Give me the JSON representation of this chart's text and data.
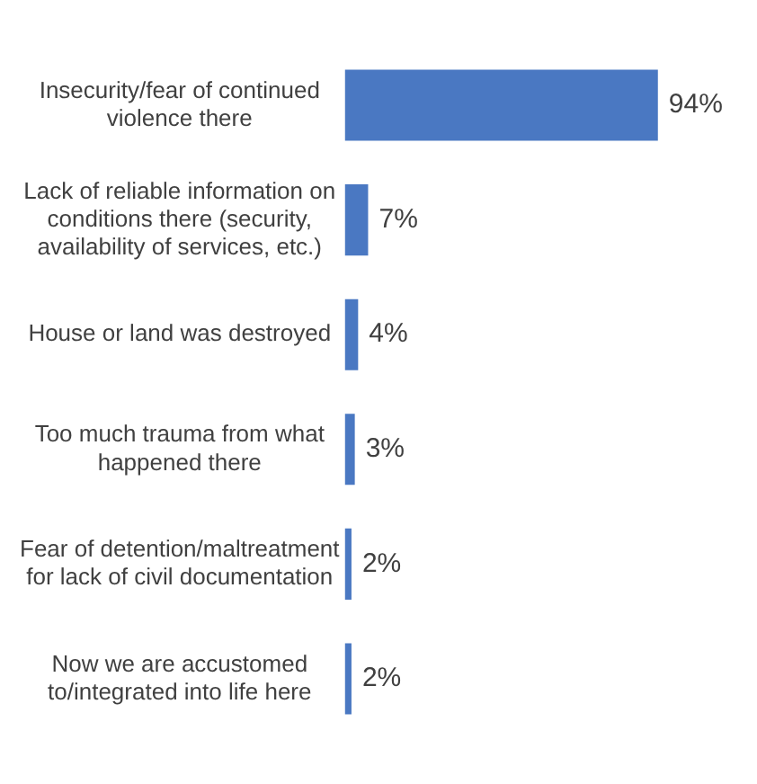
{
  "chart_data": {
    "type": "bar",
    "orientation": "horizontal",
    "categories": [
      "Insecurity/fear of continued violence there",
      "Lack of reliable information on conditions there (security, availability of services, etc.)",
      "House or land was destroyed",
      "Too much trauma from what happened there",
      "Fear of detention/maltreatment for lack of civil documentation",
      "Now we are accustomed to/integrated into life here"
    ],
    "values": [
      94,
      7,
      4,
      3,
      2,
      2
    ],
    "value_labels": [
      "94%",
      "7%",
      "4%",
      "3%",
      "2%",
      "2%"
    ],
    "color": "#4a78c2",
    "grid": false,
    "legend": false
  }
}
